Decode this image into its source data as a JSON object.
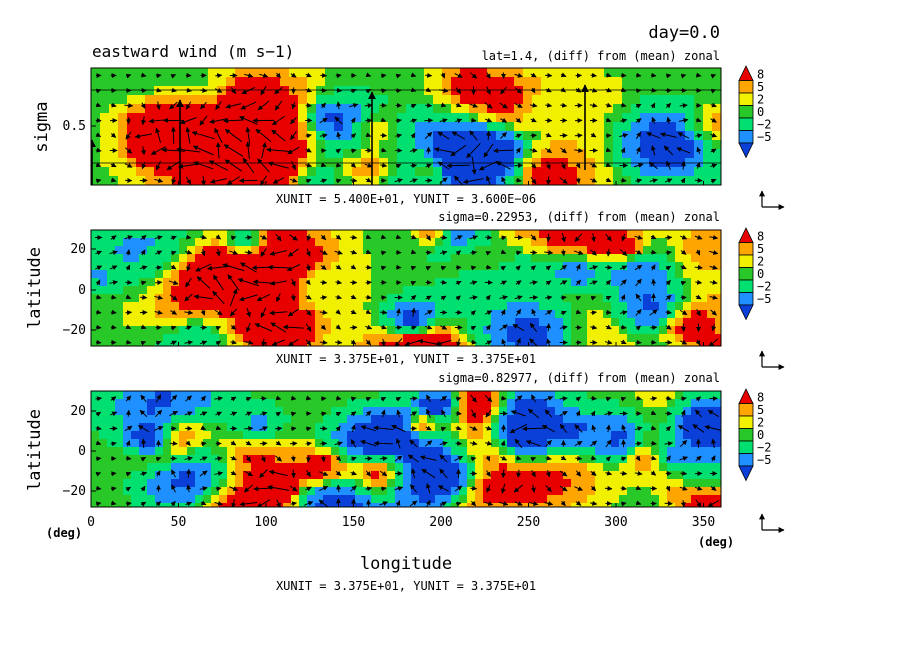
{
  "header": {
    "day_label": "day=0.0",
    "title": "eastward wind (m s−1)"
  },
  "colorbar": {
    "levels": [
      "8",
      "5",
      "2",
      "0",
      "−2",
      "−5"
    ],
    "colors": [
      "#0a40d8",
      "#1e90ff",
      "#00e070",
      "#28c828",
      "#f0f000",
      "#ffa500",
      "#e80000"
    ]
  },
  "chart_data": [
    {
      "type": "heatmap",
      "subtitle": "lat=1.4, (diff) from (mean) zonal",
      "ylabel": "sigma",
      "yticks": [
        "0.5"
      ],
      "xlim": [
        0,
        360
      ],
      "unit_label": "XUNIT = 5.400E+01, YUNIT = 3.600E−06"
    },
    {
      "type": "heatmap",
      "subtitle": "sigma=0.22953, (diff) from (mean) zonal",
      "ylabel": "latitude",
      "yticks": [
        "20",
        "0",
        "−20"
      ],
      "xlim": [
        0,
        360
      ],
      "ylim": [
        -28,
        28
      ],
      "unit_label": "XUNIT = 3.375E+01, YUNIT = 3.375E+01"
    },
    {
      "type": "heatmap",
      "subtitle": "sigma=0.82977, (diff) from (mean) zonal",
      "ylabel": "latitude",
      "yticks": [
        "20",
        "0",
        "−20"
      ],
      "xlabel": "longitude",
      "xticks": [
        "0",
        "50",
        "100",
        "150",
        "200",
        "250",
        "300",
        "350"
      ],
      "xlim": [
        0,
        360
      ],
      "ylim": [
        -28,
        28
      ],
      "unit_left": "(deg)",
      "unit_right": "(deg)",
      "unit_label": "XUNIT = 3.375E+01, YUNIT = 3.375E+01"
    }
  ]
}
